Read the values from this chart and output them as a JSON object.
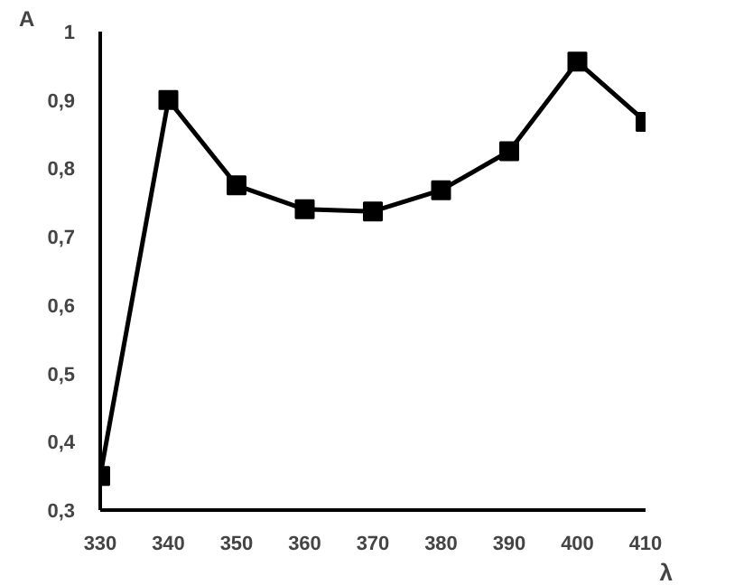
{
  "chart_data": {
    "type": "line",
    "xlabel": "λ",
    "ylabel": "A",
    "x": [
      330,
      340,
      350,
      360,
      370,
      380,
      390,
      400,
      410
    ],
    "series": [
      {
        "color": "#000000",
        "values": [
          0.35,
          0.9,
          0.775,
          0.74,
          0.737,
          0.768,
          0.825,
          0.956,
          0.868
        ]
      }
    ],
    "xlim": [
      330,
      410
    ],
    "ylim": [
      0.3,
      1
    ],
    "xticks": [
      330,
      340,
      350,
      360,
      370,
      380,
      390,
      400,
      410
    ],
    "yticks": [
      {
        "value": 0.3,
        "label": "0,3"
      },
      {
        "value": 0.4,
        "label": "0,4"
      },
      {
        "value": 0.5,
        "label": "0,5"
      },
      {
        "value": 0.6,
        "label": "0,6"
      },
      {
        "value": 0.7,
        "label": "0,7"
      },
      {
        "value": 0.8,
        "label": "0,8"
      },
      {
        "value": 0.9,
        "label": "0,9"
      },
      {
        "value": 1,
        "label": "1"
      }
    ],
    "grid": false,
    "marker": "square",
    "line_style": "solid"
  }
}
